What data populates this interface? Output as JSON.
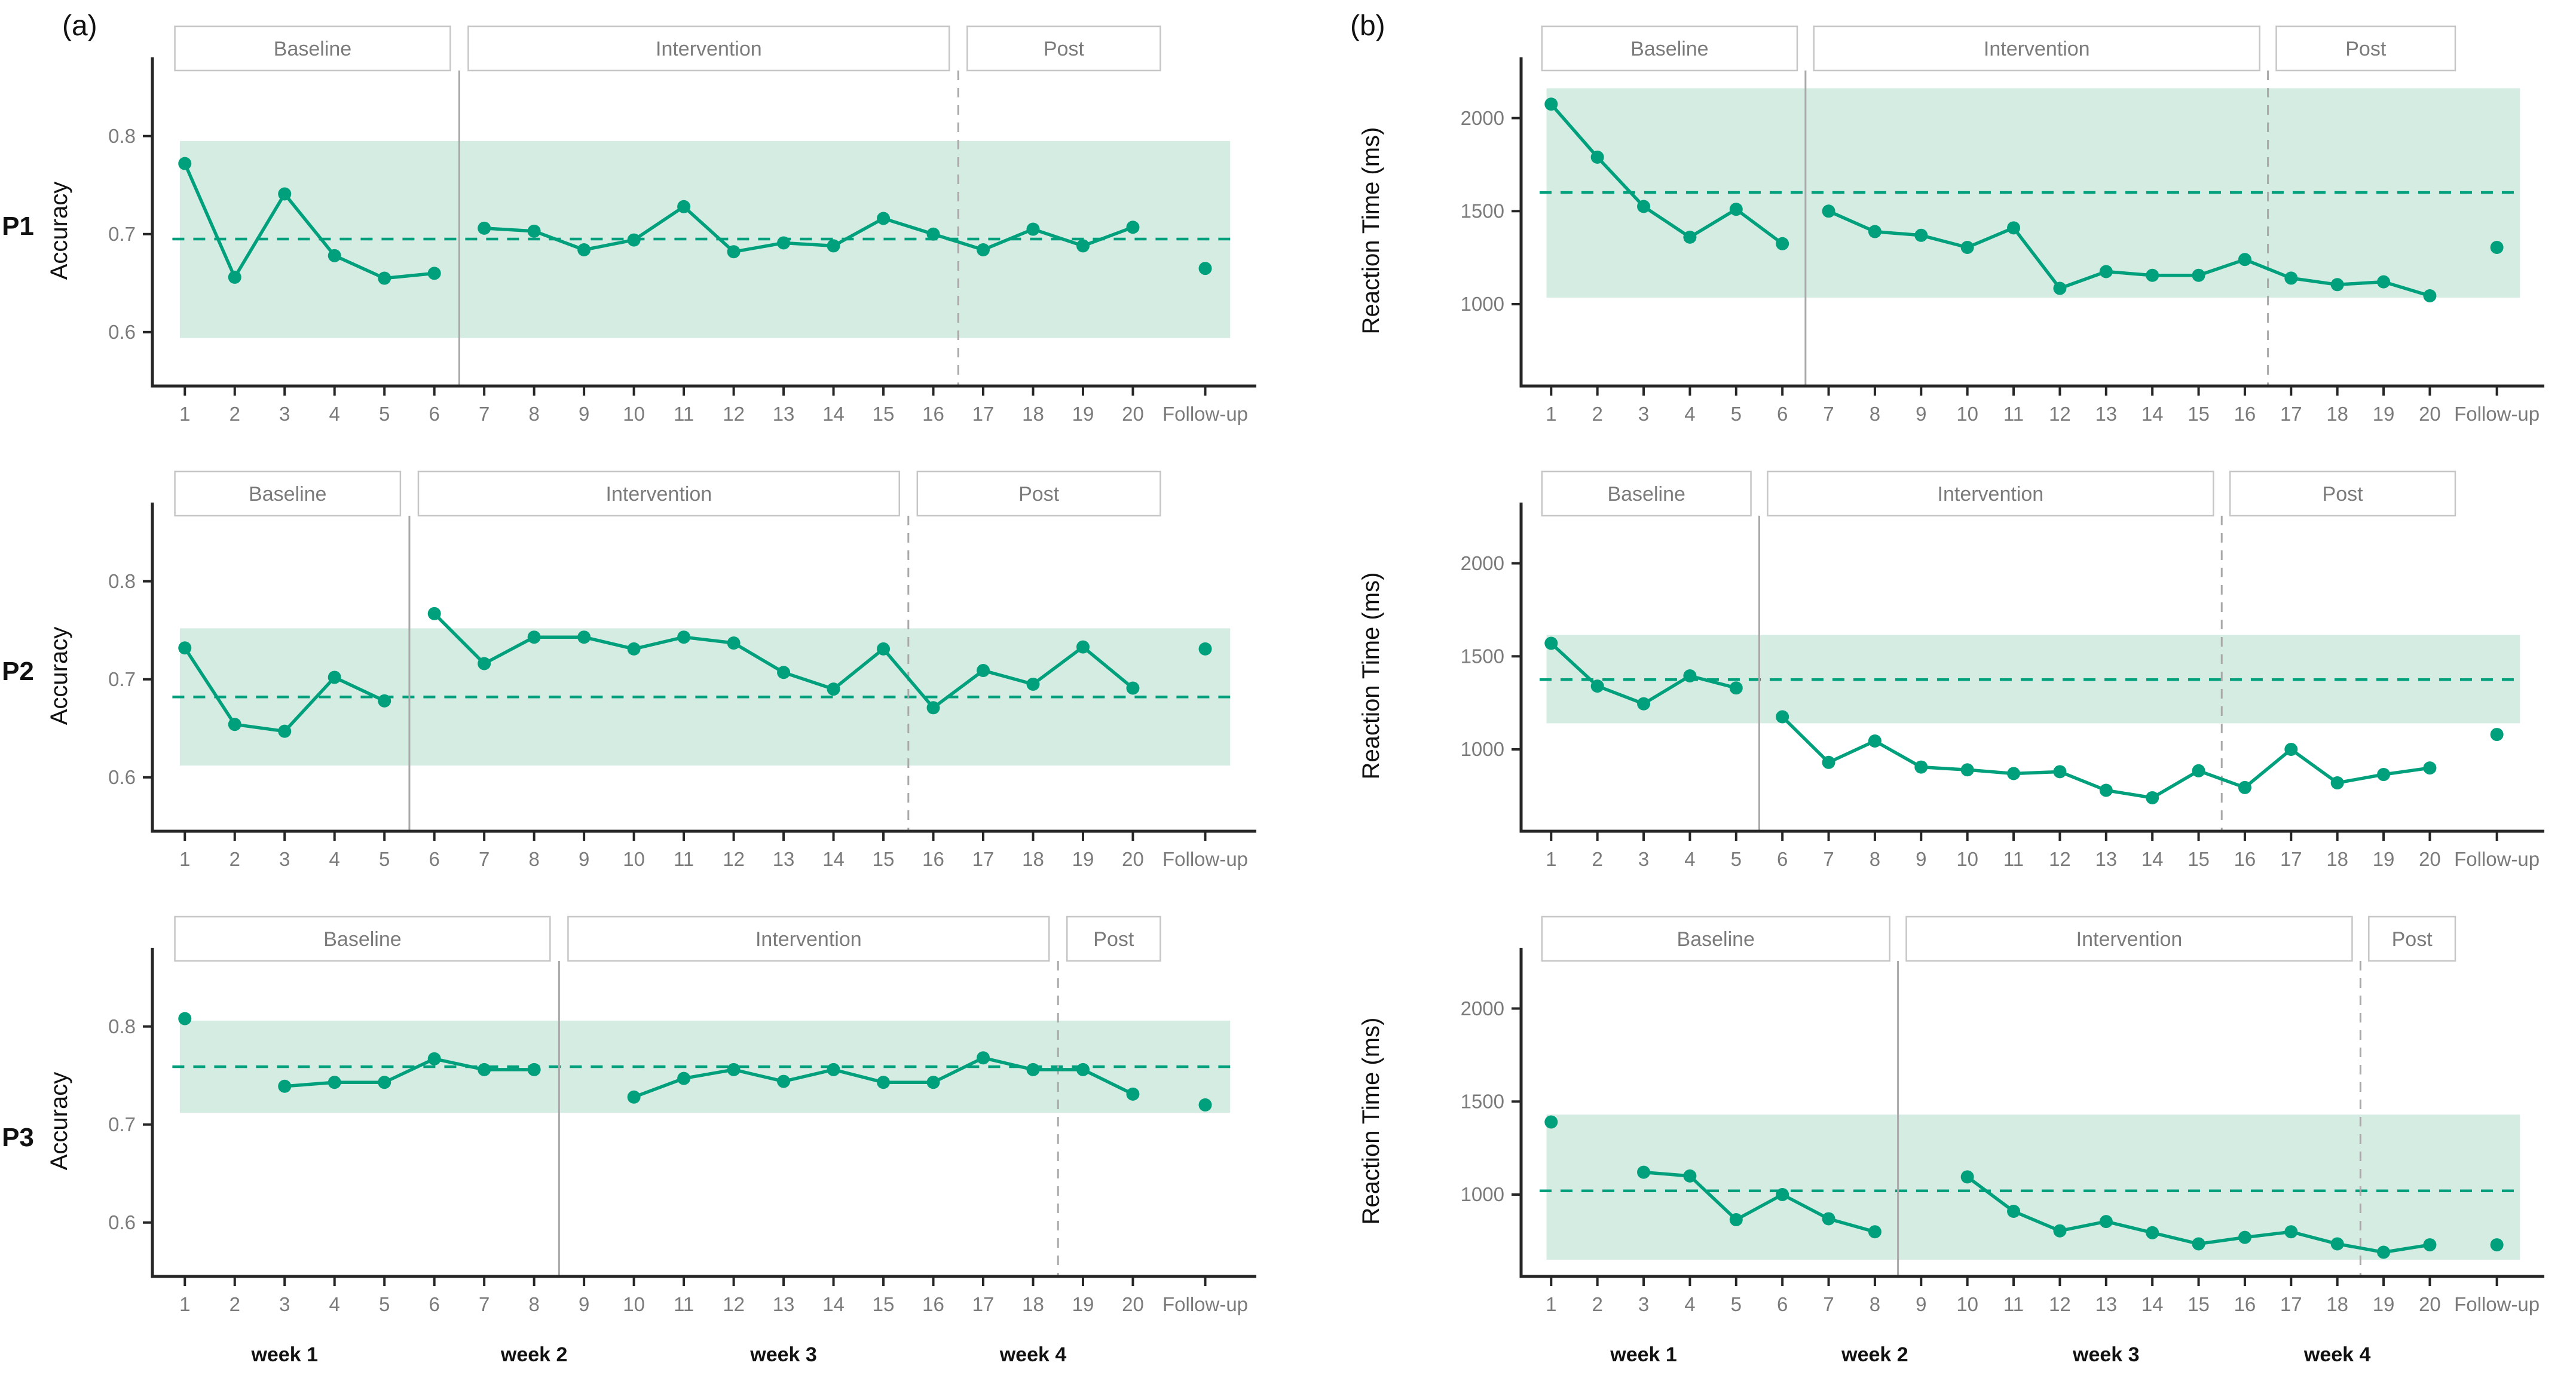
{
  "figure": {
    "panel_a_label": "(a)",
    "panel_b_label": "(b)",
    "xtick_labels": [
      "1",
      "2",
      "3",
      "4",
      "5",
      "6",
      "7",
      "8",
      "9",
      "10",
      "11",
      "12",
      "13",
      "14",
      "15",
      "16",
      "17",
      "18",
      "19",
      "20",
      "Follow-up"
    ],
    "week_labels": [
      {
        "label": "week 1",
        "session": 3
      },
      {
        "label": "week 2",
        "session": 8
      },
      {
        "label": "week 3",
        "session": 13
      },
      {
        "label": "week 4",
        "session": 18
      }
    ],
    "colors": {
      "line": "#00a07c",
      "band": "#d5ece3",
      "gray_text": "#7b7b7b",
      "axis": "#262626",
      "box_border": "#c6c6c6",
      "phase_line": "#a9a9a9"
    }
  },
  "chart_data": [
    {
      "type": "line",
      "panel": "a",
      "participant": "P1",
      "ylabel": "Accuracy",
      "phases": [
        "Baseline",
        "Intervention",
        "Post"
      ],
      "phase_change_1": 6.5,
      "phase_change_2": 16.5,
      "baseline_mean": 0.695,
      "band": [
        0.594,
        0.795
      ],
      "yticks": [
        0.6,
        0.7,
        0.8
      ],
      "ytick_labels": [
        "0.6",
        "0.7",
        "0.8"
      ],
      "ylim": [
        0.545,
        0.862
      ],
      "values": [
        0.772,
        0.656,
        0.741,
        0.678,
        0.655,
        0.66,
        0.706,
        0.703,
        0.684,
        0.694,
        0.728,
        0.682,
        0.691,
        0.688,
        0.716,
        0.7,
        0.684,
        0.705,
        0.688,
        0.707
      ],
      "followup": 0.665,
      "show_weeks": false
    },
    {
      "type": "line",
      "panel": "a",
      "participant": "P2",
      "ylabel": "Accuracy",
      "phases": [
        "Baseline",
        "Intervention",
        "Post"
      ],
      "phase_change_1": 5.5,
      "phase_change_2": 15.5,
      "baseline_mean": 0.682,
      "band": [
        0.612,
        0.752
      ],
      "yticks": [
        0.6,
        0.7,
        0.8
      ],
      "ytick_labels": [
        "0.6",
        "0.7",
        "0.8"
      ],
      "ylim": [
        0.545,
        0.862
      ],
      "values": [
        0.732,
        0.654,
        0.647,
        0.702,
        0.678,
        0.767,
        0.716,
        0.743,
        0.743,
        0.731,
        0.743,
        0.737,
        0.707,
        0.69,
        0.731,
        0.671,
        0.709,
        0.695,
        0.733,
        0.691
      ],
      "followup": 0.731,
      "show_weeks": false
    },
    {
      "type": "line",
      "panel": "a",
      "participant": "P3",
      "ylabel": "Accuracy",
      "phases": [
        "Baseline",
        "Intervention",
        "Post"
      ],
      "phase_change_1": 8.5,
      "phase_change_2": 18.5,
      "baseline_mean": 0.759,
      "band": [
        0.712,
        0.806
      ],
      "yticks": [
        0.6,
        0.7,
        0.8
      ],
      "ytick_labels": [
        "0.6",
        "0.7",
        "0.8"
      ],
      "ylim": [
        0.545,
        0.862
      ],
      "values": [
        0.808,
        null,
        0.739,
        0.743,
        0.743,
        0.767,
        0.756,
        0.756,
        null,
        0.728,
        0.747,
        0.756,
        0.744,
        0.756,
        0.743,
        0.743,
        0.768,
        0.756,
        0.756,
        0.731
      ],
      "followup": 0.72,
      "show_weeks": true
    },
    {
      "type": "line",
      "panel": "b",
      "participant": "P1",
      "ylabel": "Reaction Time (ms)",
      "phases": [
        "Baseline",
        "Intervention",
        "Post"
      ],
      "phase_change_1": 6.5,
      "phase_change_2": 16.5,
      "baseline_mean": 1600,
      "band": [
        1035,
        2160
      ],
      "yticks": [
        1000,
        1500,
        2000
      ],
      "ytick_labels": [
        "1000",
        "1500",
        "2000"
      ],
      "ylim": [
        560,
        2230
      ],
      "values": [
        2075,
        1790,
        1525,
        1360,
        1510,
        1325,
        1500,
        1390,
        1370,
        1305,
        1410,
        1085,
        1175,
        1155,
        1155,
        1240,
        1140,
        1105,
        1120,
        1045
      ],
      "followup": 1305,
      "show_weeks": false
    },
    {
      "type": "line",
      "panel": "b",
      "participant": "P2",
      "ylabel": "Reaction Time (ms)",
      "phases": [
        "Baseline",
        "Intervention",
        "Post"
      ],
      "phase_change_1": 5.5,
      "phase_change_2": 15.5,
      "baseline_mean": 1375,
      "band": [
        1140,
        1615
      ],
      "yticks": [
        1000,
        1500,
        2000
      ],
      "ytick_labels": [
        "1000",
        "1500",
        "2000"
      ],
      "ylim": [
        560,
        2230
      ],
      "values": [
        1570,
        1340,
        1245,
        1395,
        1330,
        1175,
        930,
        1045,
        905,
        890,
        870,
        880,
        780,
        740,
        885,
        795,
        1000,
        820,
        865,
        900
      ],
      "followup": 1080,
      "show_weeks": false
    },
    {
      "type": "line",
      "panel": "b",
      "participant": "P3",
      "ylabel": "Reaction Time (ms)",
      "phases": [
        "Baseline",
        "Intervention",
        "Post"
      ],
      "phase_change_1": 8.5,
      "phase_change_2": 18.5,
      "baseline_mean": 1020,
      "band": [
        650,
        1430
      ],
      "yticks": [
        1000,
        1500,
        2000
      ],
      "ytick_labels": [
        "1000",
        "1500",
        "2000"
      ],
      "ylim": [
        560,
        2230
      ],
      "values": [
        1390,
        null,
        1120,
        1100,
        865,
        1000,
        870,
        800,
        null,
        1095,
        910,
        805,
        855,
        795,
        735,
        770,
        800,
        735,
        690,
        730
      ],
      "followup": 730,
      "show_weeks": true
    }
  ]
}
